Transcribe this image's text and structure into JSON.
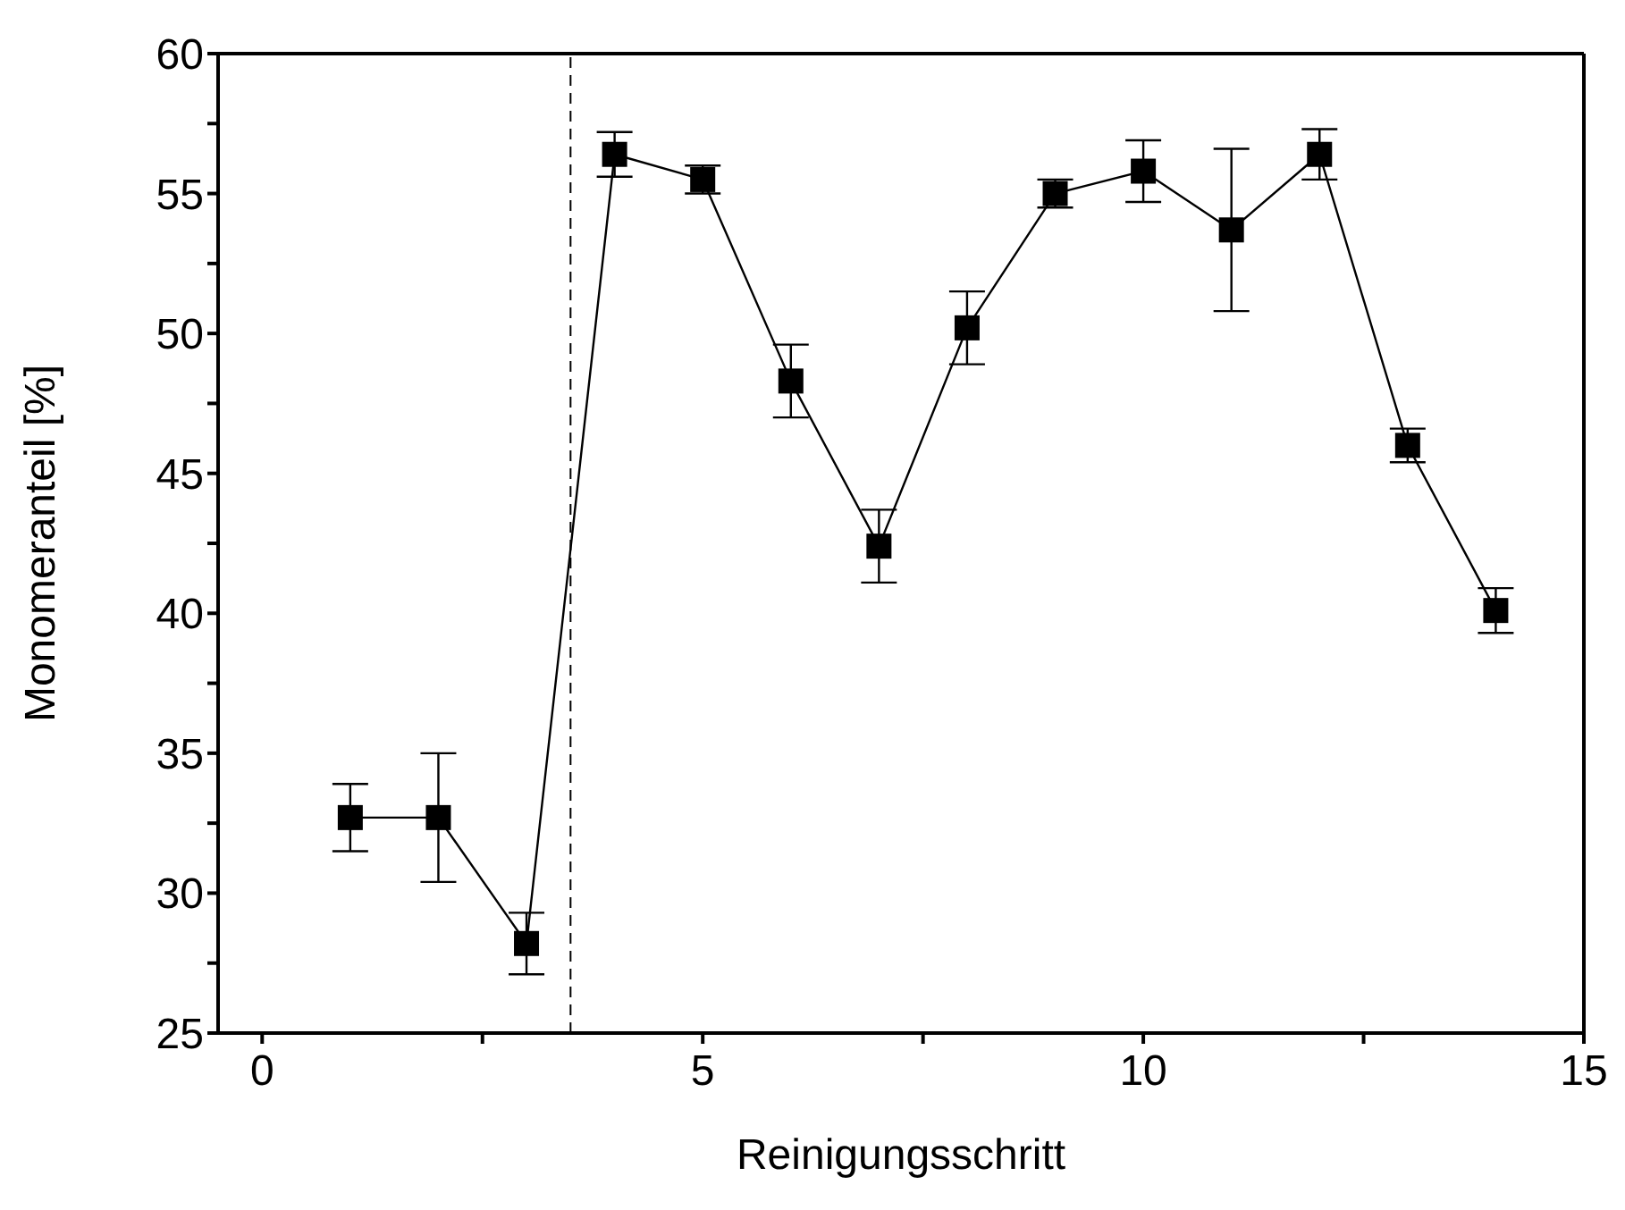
{
  "chart_data": {
    "type": "line",
    "xlabel": "Reinigungsschritt",
    "ylabel": "Monomeranteil [%]",
    "x": [
      1,
      2,
      3,
      4,
      5,
      6,
      7,
      8,
      9,
      10,
      11,
      12,
      13,
      14
    ],
    "series": [
      {
        "color": "#000000",
        "values": [
          32.7,
          32.7,
          28.2,
          56.4,
          55.5,
          48.3,
          42.4,
          50.2,
          55.0,
          55.8,
          53.7,
          56.4,
          46.0,
          40.1
        ],
        "errors": [
          [
            31.5,
            33.9
          ],
          [
            30.4,
            35.0
          ],
          [
            27.1,
            29.3
          ],
          [
            55.6,
            57.2
          ],
          [
            55.0,
            56.0
          ],
          [
            47.0,
            49.6
          ],
          [
            41.1,
            43.7
          ],
          [
            48.9,
            51.5
          ],
          [
            54.5,
            55.5
          ],
          [
            54.7,
            56.9
          ],
          [
            50.8,
            56.6
          ],
          [
            55.5,
            57.3
          ],
          [
            45.4,
            46.6
          ],
          [
            39.3,
            40.9
          ]
        ]
      }
    ],
    "xlim": [
      -0.5,
      15
    ],
    "ylim": [
      25,
      60
    ],
    "xticks": [
      0,
      {
        "value": 2.5,
        "label": null
      },
      5,
      {
        "value": 7.5,
        "label": null
      },
      10,
      {
        "value": 12.5,
        "label": null
      },
      15
    ],
    "yticks": [
      25,
      {
        "value": 27.5,
        "label": null
      },
      30,
      {
        "value": 32.5,
        "label": null
      },
      35,
      {
        "value": 37.5,
        "label": null
      },
      40,
      {
        "value": 42.5,
        "label": null
      },
      45,
      {
        "value": 47.5,
        "label": null
      },
      50,
      {
        "value": 52.5,
        "label": null
      },
      55,
      {
        "value": 57.5,
        "label": null
      },
      60
    ],
    "ref_lines": [
      {
        "axis": "x",
        "value": 3.5,
        "line_style": "dashed",
        "color": "#000000"
      }
    ],
    "marker": "square",
    "line_style": "solid",
    "grid": false
  }
}
